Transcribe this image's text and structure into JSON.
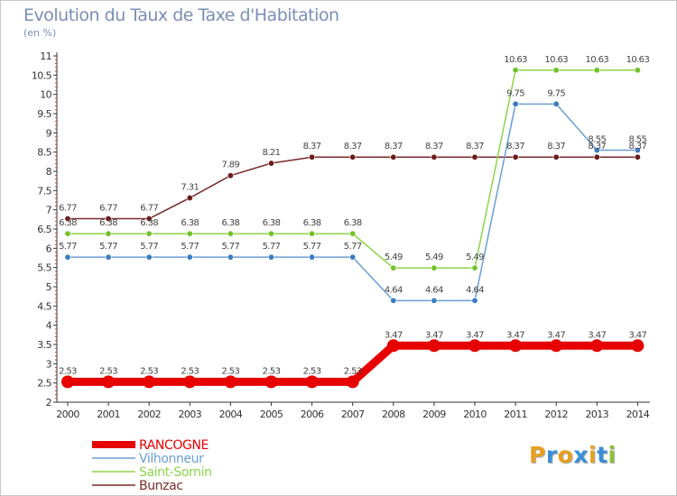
{
  "chart_data": {
    "type": "line",
    "title": "Evolution du Taux de Taxe d'Habitation",
    "ylabel": "(en %)",
    "xlabel": "",
    "categories": [
      "2000",
      "2001",
      "2002",
      "2003",
      "2004",
      "2005",
      "2006",
      "2007",
      "2008",
      "2009",
      "2010",
      "2011",
      "2012",
      "2013",
      "2014"
    ],
    "ylim": [
      2,
      11
    ],
    "yticks": [
      "2",
      "2.5",
      "3",
      "3.5",
      "4",
      "4.5",
      "5",
      "5.5",
      "6",
      "6.5",
      "7",
      "7.5",
      "8",
      "8.5",
      "9",
      "9.5",
      "10",
      "10.5",
      "11"
    ],
    "grid": false,
    "legend_position": "bottom-left",
    "series": [
      {
        "name": "RANCOGNE",
        "color": "#e60000",
        "emphasis": true,
        "values": [
          2.53,
          2.53,
          2.53,
          2.53,
          2.53,
          2.53,
          2.53,
          2.53,
          3.47,
          3.47,
          3.47,
          3.47,
          3.47,
          3.47,
          3.47
        ],
        "labels": [
          "2.53",
          "2.53",
          "2.53",
          "2.53",
          "2.53",
          "2.53",
          "2.53",
          "2.53",
          "3.47",
          "3.47",
          "3.47",
          "3.47",
          "3.47",
          "3.47",
          "3.47"
        ]
      },
      {
        "name": "Vilhonneur",
        "color": "#6b9fd4",
        "marker": "#3a7cc0",
        "values": [
          5.77,
          5.77,
          5.77,
          5.77,
          5.77,
          5.77,
          5.77,
          5.77,
          4.64,
          4.64,
          4.64,
          9.75,
          9.75,
          8.55,
          8.55
        ],
        "labels": [
          "5.77",
          "5.77",
          "5.77",
          "5.77",
          "5.77",
          "5.77",
          "5.77",
          "5.77",
          "4.64",
          "4.64",
          "4.64",
          "9.75",
          "9.75",
          "8.55",
          "8.55"
        ]
      },
      {
        "name": "Saint-Sornin",
        "color": "#8fd44a",
        "marker": "#72c12a",
        "values": [
          6.38,
          6.38,
          6.38,
          6.38,
          6.38,
          6.38,
          6.38,
          6.38,
          5.49,
          5.49,
          5.49,
          10.63,
          10.63,
          10.63,
          10.63
        ],
        "labels": [
          "6.38",
          "6.38",
          "6.38",
          "6.38",
          "6.38",
          "6.38",
          "6.38",
          "6.38",
          "5.49",
          "5.49",
          "5.49",
          "10.63",
          "10.63",
          "10.63",
          "10.63"
        ]
      },
      {
        "name": "Bunzac",
        "color": "#7a2a2a",
        "marker": "#6a1c1c",
        "values": [
          6.77,
          6.77,
          6.77,
          7.31,
          7.89,
          8.21,
          8.37,
          8.37,
          8.37,
          8.37,
          8.37,
          8.37,
          8.37,
          8.37,
          8.37
        ],
        "labels": [
          "6.77",
          "6.77",
          "6.77",
          "7.31",
          "7.89",
          "8.21",
          "8.37",
          "8.37",
          "8.37",
          "8.37",
          "8.37",
          "8.37",
          "8.37",
          "8.37",
          "8.37"
        ]
      }
    ]
  },
  "legend": [
    {
      "label": "RANCOGNE",
      "color": "#e60000"
    },
    {
      "label": "Vilhonneur",
      "color": "#6b9fd4"
    },
    {
      "label": "Saint-Sornin",
      "color": "#8fd44a"
    },
    {
      "label": "Bunzac",
      "color": "#7a2a2a"
    }
  ],
  "logo": {
    "letters": [
      "P",
      "r",
      "o",
      "x",
      "i",
      "t",
      "i"
    ],
    "colors": [
      "#e8a020",
      "#3a8fd8",
      "#e8a020",
      "#3a8fd8",
      "#e8a020",
      "#3a8fd8",
      "#8bbf3a"
    ]
  }
}
